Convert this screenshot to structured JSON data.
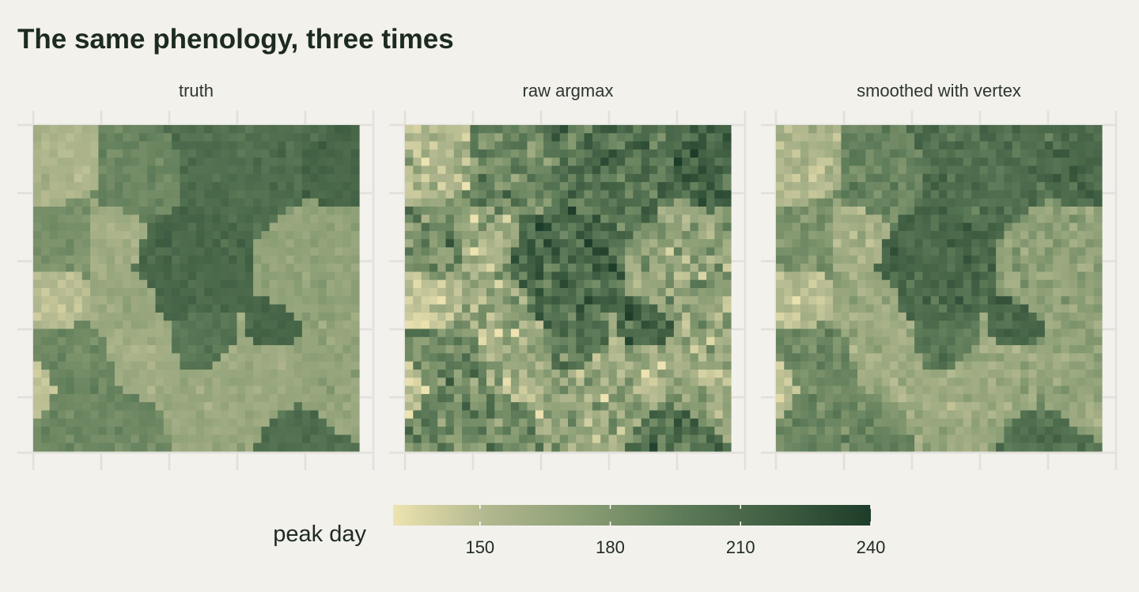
{
  "title": "The same phenology, three times",
  "chart_data": {
    "type": "heatmap",
    "title": "The same phenology, three times",
    "facets": [
      "truth",
      "raw argmax",
      "smoothed with vertex"
    ],
    "grid_size": 40,
    "grid_lines": true,
    "axis_tick_labels": false,
    "fill": {
      "name": "peak day",
      "breaks": [
        150,
        180,
        210,
        240
      ],
      "limits": [
        130,
        240
      ],
      "palette": [
        "#ece3b0",
        "#b1b78e",
        "#8a9d74",
        "#5e7c59",
        "#3f5e42",
        "#1d3d2a"
      ]
    },
    "regions": [
      {
        "cx": 0.62,
        "cy": 0.1,
        "r": 0.22,
        "value": 205
      },
      {
        "cx": 0.33,
        "cy": 0.16,
        "r": 0.16,
        "value": 190
      },
      {
        "cx": 0.08,
        "cy": 0.12,
        "r": 0.14,
        "value": 155
      },
      {
        "cx": 0.92,
        "cy": 0.14,
        "r": 0.1,
        "value": 212
      },
      {
        "cx": 0.1,
        "cy": 0.35,
        "r": 0.13,
        "value": 182
      },
      {
        "cx": 0.48,
        "cy": 0.42,
        "r": 0.19,
        "value": 210
      },
      {
        "cx": 0.24,
        "cy": 0.34,
        "r": 0.12,
        "value": 160
      },
      {
        "cx": 0.86,
        "cy": 0.42,
        "r": 0.17,
        "value": 170
      },
      {
        "cx": 0.08,
        "cy": 0.52,
        "r": 0.1,
        "value": 150
      },
      {
        "cx": 0.28,
        "cy": 0.55,
        "r": 0.12,
        "value": 165
      },
      {
        "cx": 0.72,
        "cy": 0.62,
        "r": 0.08,
        "value": 212
      },
      {
        "cx": 0.53,
        "cy": 0.67,
        "r": 0.12,
        "value": 200
      },
      {
        "cx": 0.14,
        "cy": 0.76,
        "r": 0.14,
        "value": 188
      },
      {
        "cx": 0.33,
        "cy": 0.7,
        "r": 0.13,
        "value": 162
      },
      {
        "cx": 0.64,
        "cy": 0.8,
        "r": 0.2,
        "value": 165
      },
      {
        "cx": 0.9,
        "cy": 0.78,
        "r": 0.14,
        "value": 168
      },
      {
        "cx": 0.22,
        "cy": 0.95,
        "r": 0.14,
        "value": 188
      },
      {
        "cx": 0.8,
        "cy": 0.96,
        "r": 0.12,
        "value": 205
      },
      {
        "cx": 0.02,
        "cy": 0.8,
        "r": 0.07,
        "value": 145
      }
    ],
    "noise_sd": {
      "truth": 4,
      "raw argmax": 14,
      "smoothed with vertex": 7
    }
  }
}
